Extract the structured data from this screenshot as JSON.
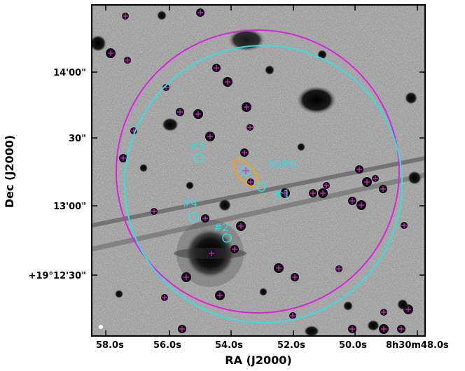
{
  "figure": {
    "x_axis": {
      "title": "RA (J2000)",
      "tick_labels": [
        "58.0s",
        "56.0s",
        "54.0s",
        "52.0s",
        "50.0s",
        "8h30m48.0s"
      ]
    },
    "y_axis": {
      "title": "Dec (J2000)",
      "tick_labels": [
        "14'00\"",
        "30\"",
        "13'00\"",
        "30\"",
        "+19°12'30\""
      ]
    },
    "annotations": {
      "target": "HzRG",
      "source_1": "#1",
      "source_2": "#2",
      "source_3": "#3",
      "source_4": "#4"
    },
    "colors": {
      "outer_circle_magenta": "#e020e0",
      "inner_circle_cyan": "#30e0e0",
      "target_ellipse": "#f0a020",
      "marker_magenta": "#e020e0",
      "label_cyan": "#30d8e0"
    }
  }
}
